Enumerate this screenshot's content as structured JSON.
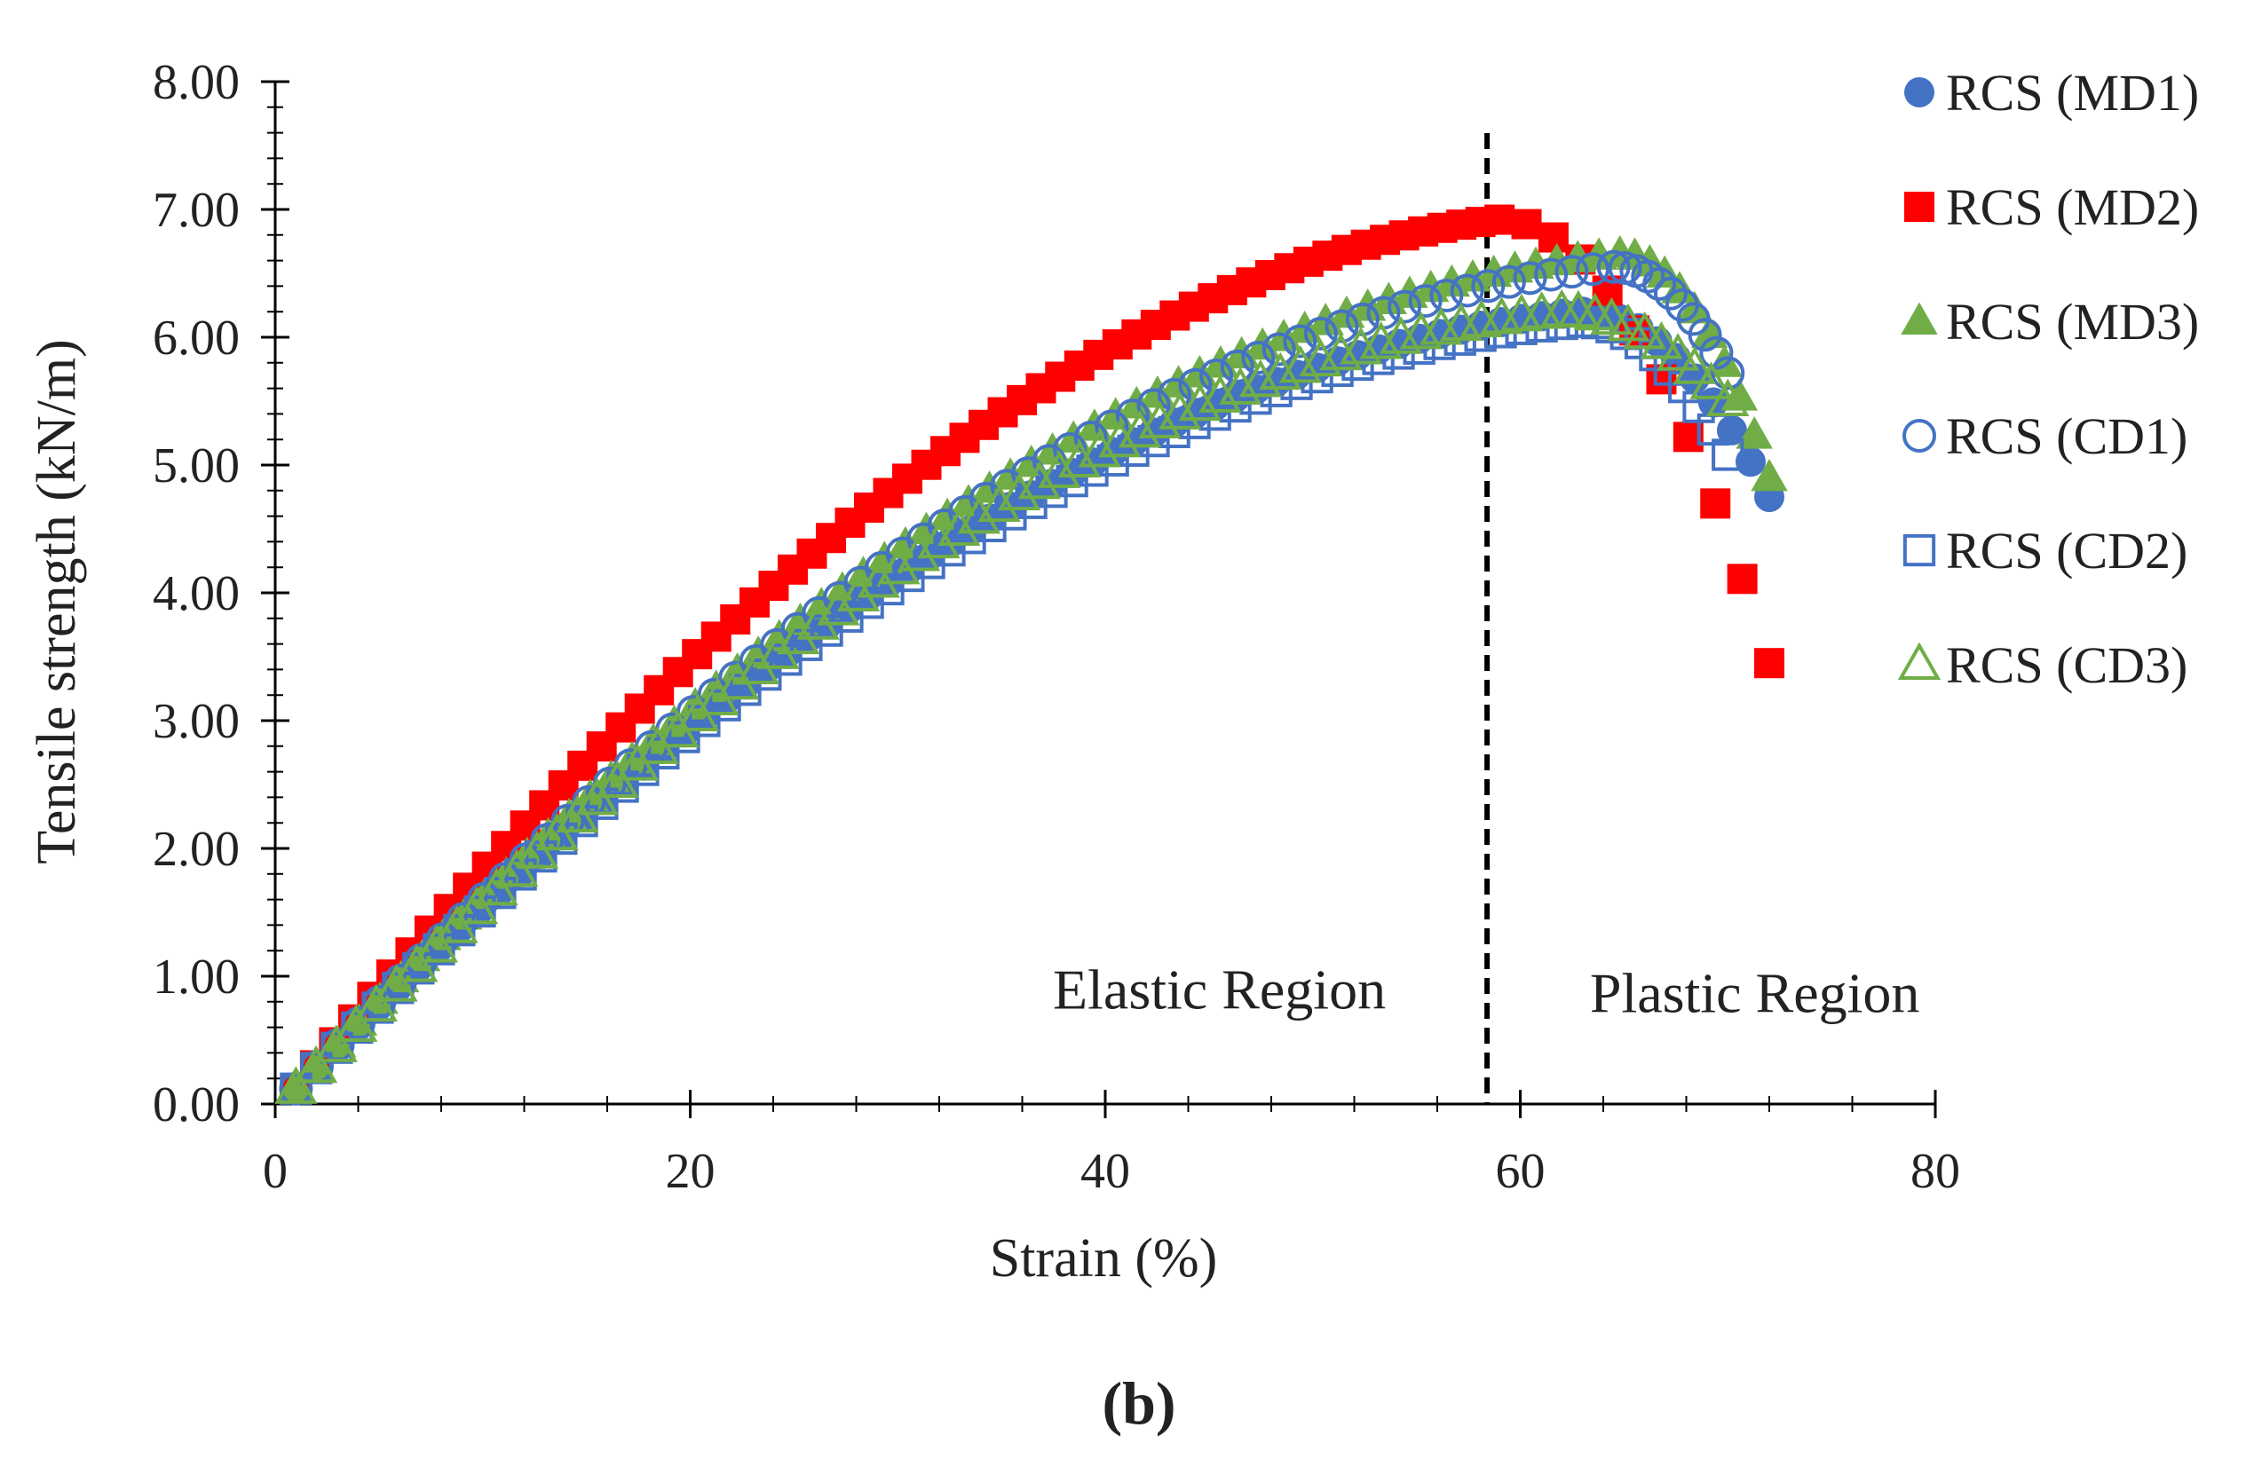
{
  "chart_data": {
    "type": "scatter",
    "title": "",
    "panel_label": "(b)",
    "xlabel": "Strain (%)",
    "ylabel": "Tensile strength (kN/m)",
    "xlim": [
      0,
      80
    ],
    "ylim": [
      0,
      8
    ],
    "x_ticks": [
      "0",
      "20",
      "40",
      "60",
      "80"
    ],
    "y_ticks": [
      "0.00",
      "1.00",
      "2.00",
      "3.00",
      "4.00",
      "5.00",
      "6.00",
      "7.00",
      "8.00"
    ],
    "divider_x": 58.4,
    "regions": [
      {
        "label": "Elastic Region",
        "x": 45.5,
        "y": 0.9
      },
      {
        "label": "Plastic Region",
        "x": 71.3,
        "y": 0.87
      }
    ],
    "legend": {
      "position": "right"
    },
    "series": [
      {
        "name": "RCS (MD1)",
        "marker": "circle",
        "filled": true,
        "color": "#4472C4",
        "peak_x": 63.0,
        "peak_y": 6.2,
        "break_x": 72.0,
        "break_y": 4.75,
        "mid": 0.18,
        "x": [],
        "y": []
      },
      {
        "name": "RCS (MD2)",
        "marker": "square",
        "filled": true,
        "color": "#FF0000",
        "peak_x": 59.0,
        "peak_y": 6.92,
        "break_x": 72.0,
        "break_y": 3.45,
        "mid": 0.35,
        "x": [],
        "y": []
      },
      {
        "name": "RCS (MD3)",
        "marker": "triangle",
        "filled": true,
        "color": "#70AD47",
        "peak_x": 64.8,
        "peak_y": 6.65,
        "break_x": 72.0,
        "break_y": 4.9,
        "mid": 0.16,
        "x": [],
        "y": []
      },
      {
        "name": "RCS (CD1)",
        "marker": "circle",
        "filled": false,
        "color": "#4472C4",
        "peak_x": 64.5,
        "peak_y": 6.55,
        "break_x": 70.0,
        "break_y": 5.72,
        "mid": 0.17,
        "x": [],
        "y": []
      },
      {
        "name": "RCS (CD2)",
        "marker": "square",
        "filled": false,
        "color": "#4472C4",
        "peak_x": 63.0,
        "peak_y": 6.12,
        "break_x": 70.0,
        "break_y": 5.08,
        "mid": 0.13,
        "x": [],
        "y": []
      },
      {
        "name": "RCS (CD3)",
        "marker": "triangle",
        "filled": false,
        "color": "#70AD47",
        "peak_x": 62.0,
        "peak_y": 6.2,
        "break_x": 70.0,
        "break_y": 5.5,
        "mid": 0.15,
        "x": [],
        "y": []
      }
    ]
  }
}
